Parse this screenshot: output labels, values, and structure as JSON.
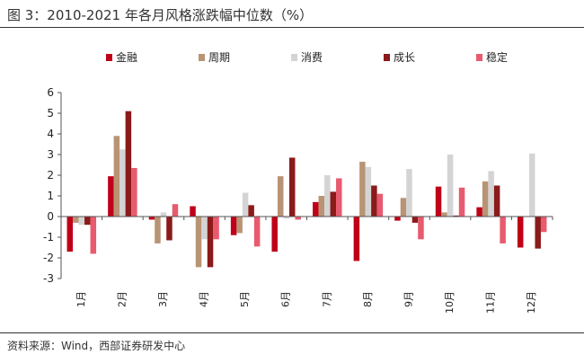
{
  "title": "图 3：2010-2021 年各月风格涨跌幅中位数（%）",
  "source": "资料来源：Wind，西部证券研发中心",
  "chart_data": {
    "type": "bar",
    "categories": [
      "1月",
      "2月",
      "3月",
      "4月",
      "5月",
      "6月",
      "7月",
      "8月",
      "9月",
      "10月",
      "11月",
      "12月"
    ],
    "series": [
      {
        "name": "金融",
        "color": "#c00018",
        "values": [
          -1.7,
          1.95,
          -0.15,
          0.5,
          -0.9,
          -1.7,
          0.7,
          -2.15,
          -0.2,
          1.45,
          0.45,
          -1.5
        ]
      },
      {
        "name": "周期",
        "color": "#b89474",
        "values": [
          -0.3,
          3.9,
          -1.3,
          -2.45,
          -0.8,
          1.95,
          1.0,
          2.65,
          0.9,
          0.2,
          1.7,
          0.0
        ]
      },
      {
        "name": "消费",
        "color": "#d4d4d4",
        "values": [
          -0.4,
          3.25,
          0.2,
          -1.1,
          1.15,
          -0.1,
          2.0,
          2.4,
          2.3,
          3.0,
          2.2,
          3.05
        ]
      },
      {
        "name": "成长",
        "color": "#8b1a1a",
        "values": [
          -0.4,
          5.1,
          -1.15,
          -2.45,
          0.55,
          2.85,
          1.2,
          1.5,
          -0.3,
          0.05,
          1.5,
          -1.55
        ]
      },
      {
        "name": "稳定",
        "color": "#e85a6e",
        "values": [
          -1.8,
          2.35,
          0.6,
          -1.1,
          -1.45,
          -0.15,
          1.85,
          1.1,
          -1.1,
          1.4,
          -1.3,
          -0.75
        ]
      }
    ],
    "ylim": [
      -3,
      6
    ],
    "yticks": [
      "-3",
      "-2",
      "-1",
      "0",
      "1",
      "2",
      "3",
      "4",
      "5",
      "6"
    ],
    "legend_position": "top",
    "grid": false
  }
}
